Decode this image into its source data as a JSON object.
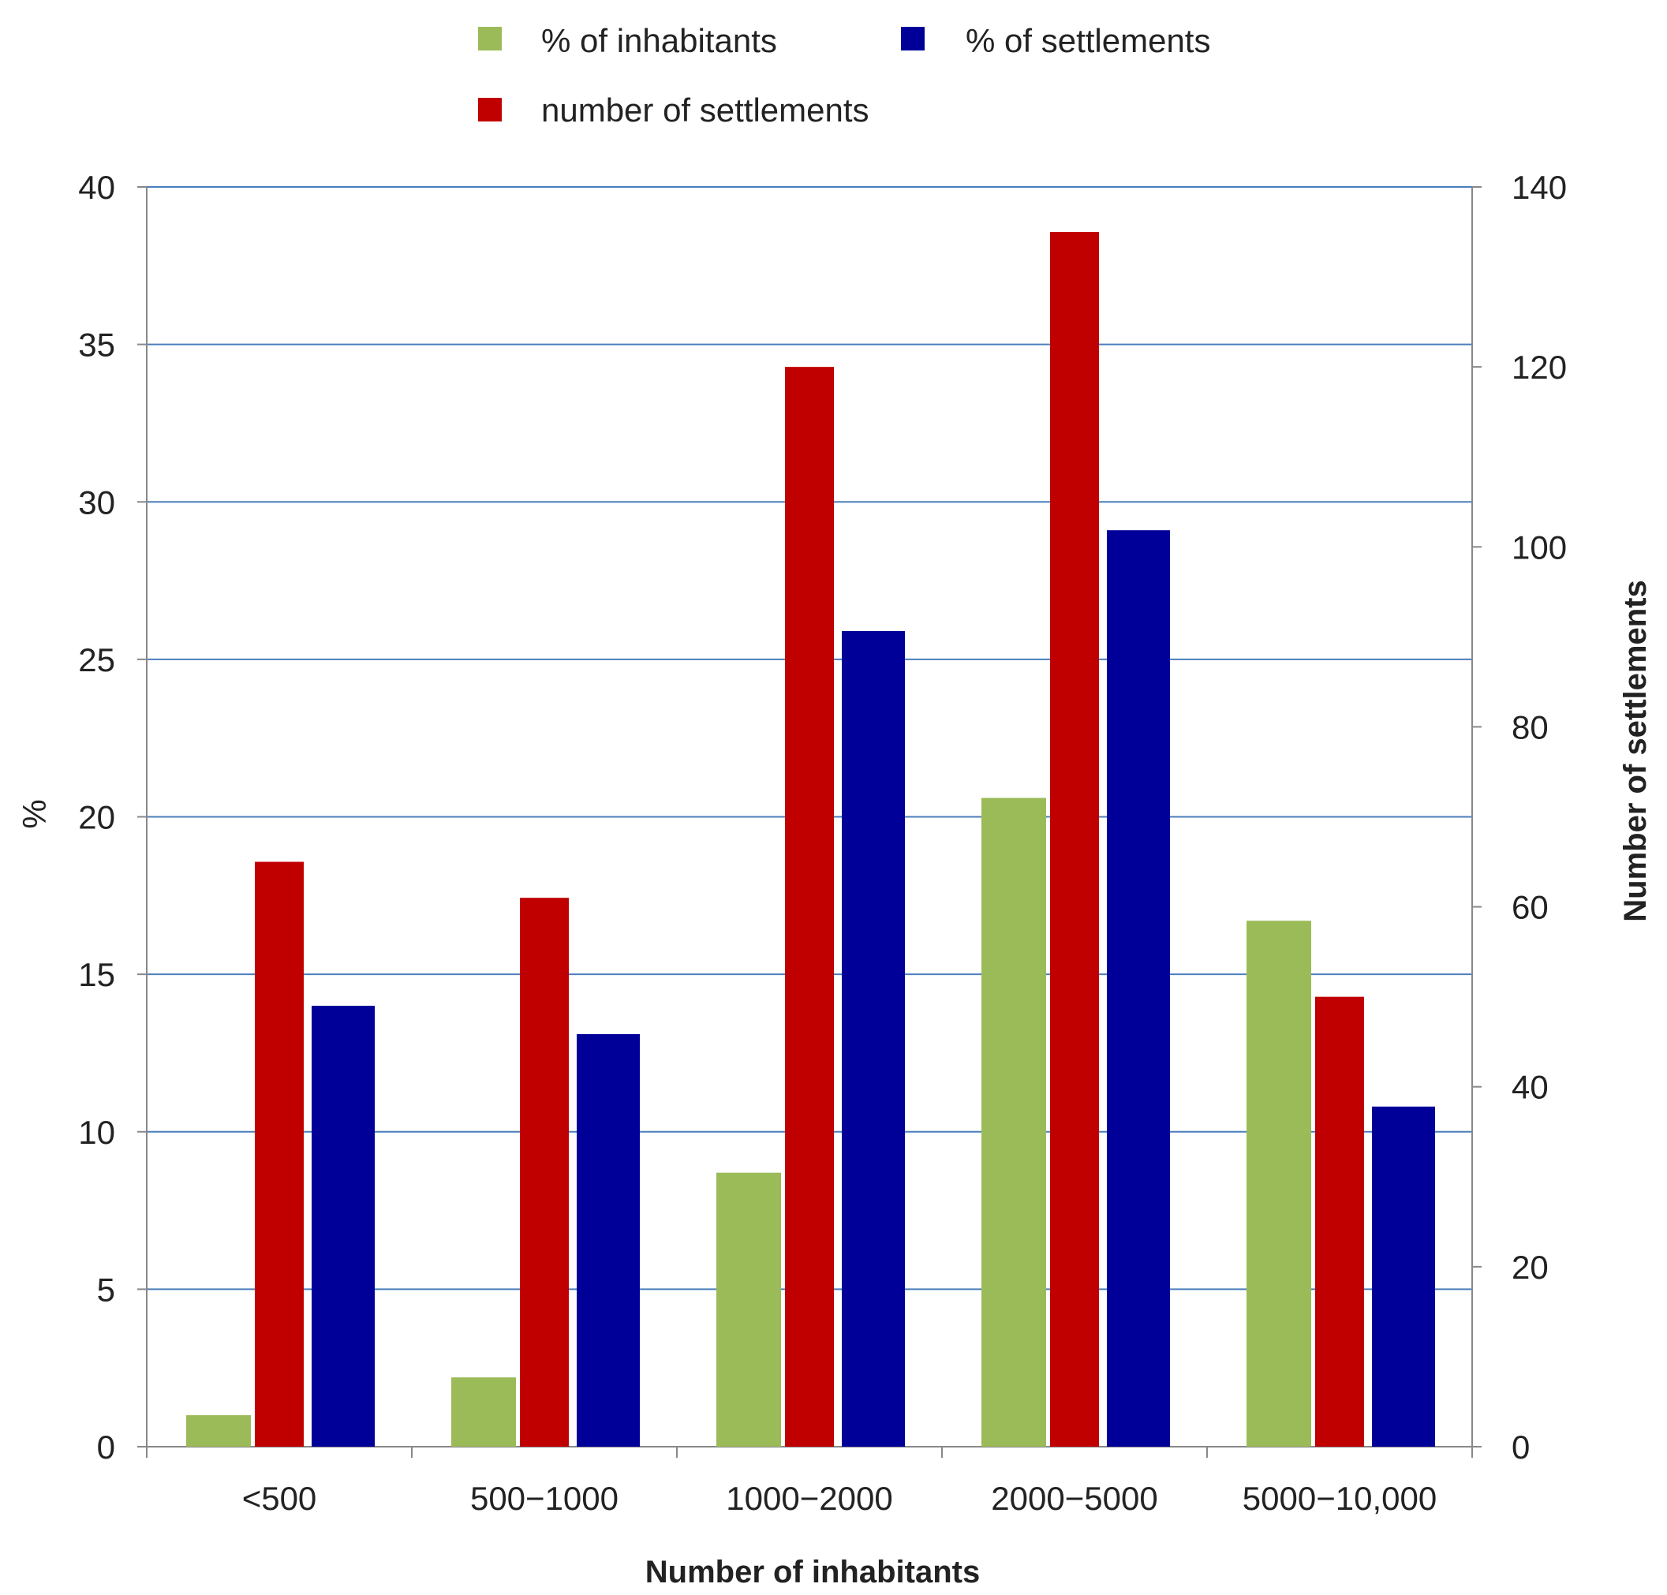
{
  "chart_data": {
    "type": "bar",
    "categories": [
      "<500",
      "500−1000",
      "1000−2000",
      "2000−5000",
      "5000−10,000"
    ],
    "series": [
      {
        "name": "% of inhabitants",
        "axis": "left",
        "color": "#9BBB59",
        "values": [
          1.0,
          2.2,
          8.7,
          20.6,
          16.7
        ]
      },
      {
        "name": "number of settlements",
        "axis": "right",
        "color": "#C00000",
        "values": [
          65,
          61,
          120,
          135,
          50
        ]
      },
      {
        "name": "% of settlements",
        "axis": "left",
        "color": "#000099",
        "values": [
          14.0,
          13.1,
          25.9,
          29.1,
          10.8
        ]
      }
    ],
    "xlabel": "Number of inhabitants",
    "ylabel": "%",
    "y2label": "Number of settlements",
    "ylim": [
      0,
      40
    ],
    "y2lim": [
      0,
      140
    ],
    "yticks": [
      "0",
      "5",
      "10",
      "15",
      "20",
      "25",
      "30",
      "35",
      "40"
    ],
    "y2ticks": [
      "0",
      "20",
      "40",
      "60",
      "80",
      "100",
      "120",
      "140"
    ],
    "grid": true,
    "legend_position": "top",
    "gridline_color": "#4A7EBB"
  }
}
